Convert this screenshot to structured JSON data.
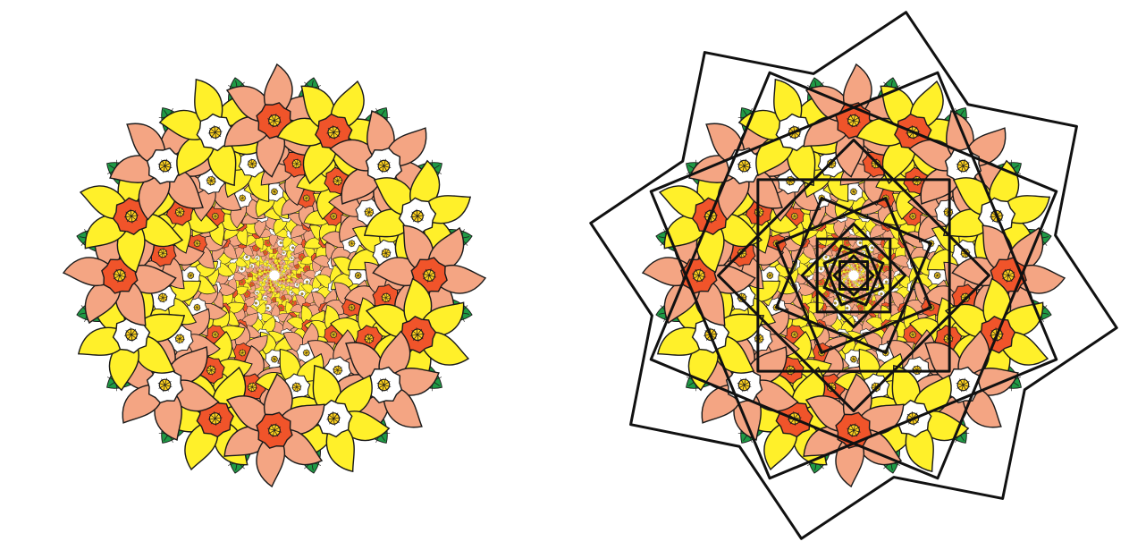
{
  "figure": {
    "panels": [
      {
        "id": "plain-mosaic",
        "shows_grid_overlay": false
      },
      {
        "id": "mosaic-with-polygon-grid",
        "shows_grid_overlay": true
      }
    ],
    "rotational_symmetry": 8,
    "flower_types": [
      "yellow-daffodil-white-cup",
      "salmon-flower-red-center",
      "yellow-daffodil-yellow-center",
      "salmon-flower-white-center"
    ],
    "colors": {
      "background": "#ffffff",
      "yellow_petal": "#fff02a",
      "salmon_petal": "#f4a583",
      "red_center": "#f0542a",
      "white_cup": "#ffffff",
      "yellow_center": "#ffd21f",
      "leaf_green": "#1f9a45",
      "outline": "#1a1a1a",
      "grid_line": "#111111"
    }
  }
}
